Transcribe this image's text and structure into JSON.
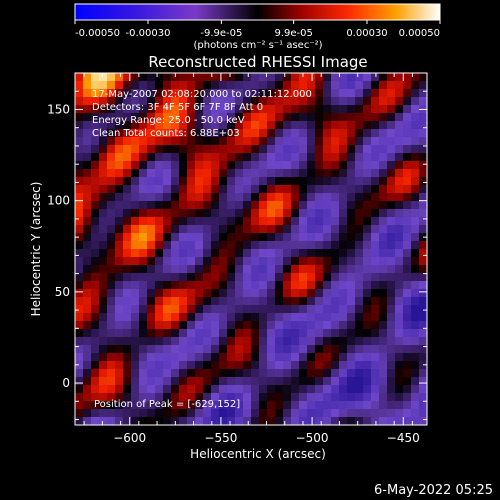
{
  "colorbar": {
    "tick_labels": [
      "-0.00050",
      "-0.00030",
      "-9.9e-05",
      "9.9e-05",
      "0.00030",
      "0.00050"
    ],
    "unit_label": "(photons cm⁻² s⁻¹ asec⁻²)",
    "range": [
      -0.0005,
      0.0005
    ]
  },
  "image": {
    "title": "Reconstructed RHESSI Image",
    "info_lines": [
      "17-May-2007 02:08:20.000 to 02:11:12.000",
      "Detectors: 3F 4F 5F 6F 7F 8F Att 0",
      "Energy Range: 25.0 - 50.0 keV",
      "Clean     Total counts: 6.88E+03"
    ],
    "peak_label": "Position of Peak = [-629,152]"
  },
  "axes": {
    "xlabel": "Heliocentric X (arcsec)",
    "ylabel": "Heliocentric Y (arcsec)",
    "xlim": [
      -630,
      -437
    ],
    "ylim": [
      -23,
      170
    ],
    "xticks": [
      -600,
      -550,
      -500,
      -450
    ],
    "yticks": [
      0,
      50,
      100,
      150
    ]
  },
  "footer": {
    "timestamp": "6-May-2022 05:25"
  }
}
